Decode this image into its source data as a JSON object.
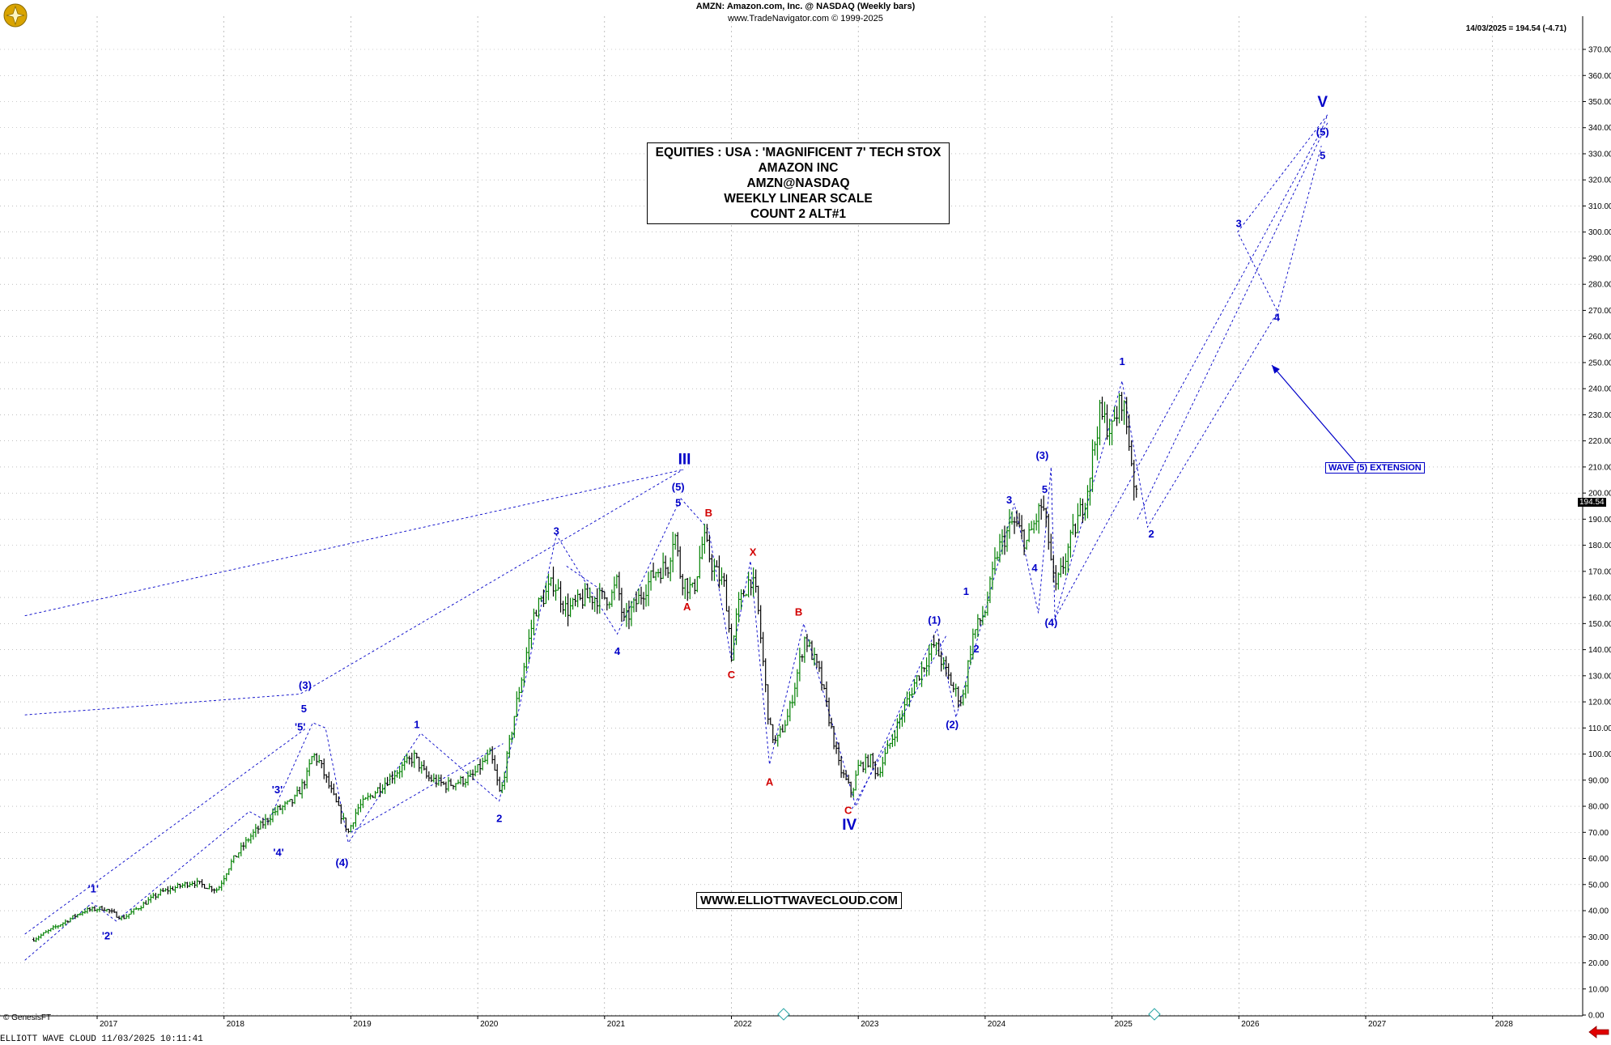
{
  "header": {
    "symbol_line": "AMZN:  Amazon.com, Inc. @ NASDAQ  (Weekly bars)",
    "source_line": "www.TradeNavigator.com © 1999-2025",
    "last_info": "14/03/2025 = 194.54 (-4.71)"
  },
  "info_box": {
    "lines": [
      "EQUITIES : USA : 'MAGNIFICENT 7' TECH STOX",
      "AMAZON INC",
      "AMZN@NASDAQ",
      "WEEKLY LINEAR SCALE",
      "COUNT 2 ALT#1"
    ]
  },
  "website": "WWW.ELLIOTTWAVECLOUD.COM",
  "extension_label": "WAVE (5) EXTENSION",
  "copyright": "© GenesisFT",
  "footer": "ELLIOTT WAVE CLOUD   11/03/2025 10:11:41",
  "last_price_tag": "194.54",
  "icons": {
    "logo": "genesis-logo-icon",
    "nav": "red-arrow-icon",
    "marker": "diamond-marker-icon"
  },
  "colors": {
    "wave_blue": "#0000c8",
    "wave_red": "#d20000",
    "bar_up": "#008000",
    "bar_down": "#000000",
    "grid": "#9a9a9a"
  },
  "chart_data": {
    "type": "ohlc",
    "title": "AMZN:  Amazon.com, Inc. @ NASDAQ  (Weekly bars)",
    "y_axis": {
      "min": 0,
      "max": 370,
      "step": 10,
      "side": "right"
    },
    "x_axis_years": [
      "2017",
      "2018",
      "2019",
      "2020",
      "2021",
      "2022",
      "2023",
      "2024",
      "2025",
      "2026",
      "2027",
      "2028"
    ],
    "grid": true,
    "price_path": [
      [
        2016.5,
        29
      ],
      [
        2016.9,
        40
      ],
      [
        2017.05,
        41
      ],
      [
        2017.2,
        37
      ],
      [
        2017.5,
        47
      ],
      [
        2017.75,
        51
      ],
      [
        2017.95,
        48
      ],
      [
        2018.05,
        58
      ],
      [
        2018.2,
        68
      ],
      [
        2018.4,
        78
      ],
      [
        2018.55,
        82
      ],
      [
        2018.65,
        91
      ],
      [
        2018.7,
        100
      ],
      [
        2018.75,
        97
      ],
      [
        2018.85,
        85
      ],
      [
        2018.98,
        70
      ],
      [
        2019.05,
        79
      ],
      [
        2019.2,
        86
      ],
      [
        2019.33,
        92
      ],
      [
        2019.5,
        99
      ],
      [
        2019.6,
        91
      ],
      [
        2019.75,
        88
      ],
      [
        2019.95,
        91
      ],
      [
        2020.1,
        100
      ],
      [
        2020.18,
        84
      ],
      [
        2020.3,
        118
      ],
      [
        2020.45,
        155
      ],
      [
        2020.6,
        166
      ],
      [
        2020.7,
        155
      ],
      [
        2020.85,
        160
      ],
      [
        2021.05,
        160
      ],
      [
        2021.1,
        166
      ],
      [
        2021.15,
        150
      ],
      [
        2021.4,
        170
      ],
      [
        2021.5,
        172
      ],
      [
        2021.55,
        186
      ],
      [
        2021.6,
        168
      ],
      [
        2021.7,
        162
      ],
      [
        2021.78,
        183
      ],
      [
        2021.85,
        172
      ],
      [
        2021.95,
        164
      ],
      [
        2022.0,
        138
      ],
      [
        2022.05,
        156
      ],
      [
        2022.15,
        168
      ],
      [
        2022.2,
        160
      ],
      [
        2022.3,
        110
      ],
      [
        2022.35,
        104
      ],
      [
        2022.45,
        115
      ],
      [
        2022.58,
        145
      ],
      [
        2022.7,
        130
      ],
      [
        2022.85,
        95
      ],
      [
        2022.95,
        85
      ],
      [
        2023.0,
        95
      ],
      [
        2023.1,
        98
      ],
      [
        2023.15,
        92
      ],
      [
        2023.3,
        110
      ],
      [
        2023.45,
        128
      ],
      [
        2023.6,
        142
      ],
      [
        2023.75,
        125
      ],
      [
        2023.82,
        120
      ],
      [
        2023.9,
        145
      ],
      [
        2024.0,
        155
      ],
      [
        2024.1,
        178
      ],
      [
        2024.22,
        189
      ],
      [
        2024.33,
        181
      ],
      [
        2024.45,
        196
      ],
      [
        2024.5,
        182
      ],
      [
        2024.55,
        162
      ],
      [
        2024.65,
        178
      ],
      [
        2024.8,
        200
      ],
      [
        2024.9,
        230
      ],
      [
        2025.0,
        224
      ],
      [
        2025.08,
        237
      ],
      [
        2025.14,
        218
      ],
      [
        2025.2,
        194.54
      ]
    ],
    "wave_lines": [
      [
        [
          2016.43,
          21
        ],
        [
          2016.96,
          43
        ],
        [
          2017.15,
          36
        ],
        [
          2018.2,
          78
        ],
        [
          2018.35,
          74
        ],
        [
          2018.7,
          112
        ],
        [
          2018.8,
          110
        ],
        [
          2018.98,
          66
        ],
        [
          2019.55,
          108
        ],
        [
          2020.17,
          82
        ],
        [
          2020.62,
          184
        ],
        [
          2021.1,
          146
        ],
        [
          2021.6,
          198
        ],
        [
          2021.82,
          186
        ],
        [
          2022.0,
          136
        ],
        [
          2022.15,
          174
        ],
        [
          2022.3,
          96
        ],
        [
          2022.57,
          150
        ],
        [
          2022.98,
          80
        ],
        [
          2023.62,
          148
        ],
        [
          2023.77,
          114
        ],
        [
          2024.23,
          196
        ],
        [
          2024.42,
          154
        ],
        [
          2024.52,
          210
        ],
        [
          2024.55,
          152
        ],
        [
          2025.08,
          243
        ],
        [
          2025.28,
          187
        ],
        [
          2026.3,
          269
        ],
        [
          2026.65,
          333
        ]
      ],
      [
        [
          2016.43,
          115
        ],
        [
          2018.6,
          123
        ],
        [
          2021.62,
          209
        ]
      ],
      [
        [
          2016.43,
          153
        ],
        [
          2021.62,
          209
        ]
      ],
      [
        [
          2016.43,
          31
        ],
        [
          2018.65,
          110
        ]
      ],
      [
        [
          2019.0,
          70
        ],
        [
          2020.2,
          104
        ]
      ],
      [
        [
          2020.7,
          172
        ],
        [
          2021.0,
          162
        ]
      ],
      [
        [
          2022.95,
          79
        ],
        [
          2023.7,
          146
        ]
      ],
      [
        [
          2024.55,
          152
        ],
        [
          2026.65,
          339
        ],
        [
          2026.7,
          345
        ],
        [
          2025.99,
          300
        ],
        [
          2026.3,
          270
        ]
      ],
      [
        [
          2025.2,
          190
        ],
        [
          2026.7,
          342
        ]
      ]
    ],
    "wave_labels": [
      {
        "text": "'1'",
        "x": 2016.97,
        "y": 47,
        "color": "blue"
      },
      {
        "text": "'2'",
        "x": 2017.08,
        "y": 29,
        "color": "blue"
      },
      {
        "text": "'3'",
        "x": 2018.42,
        "y": 85,
        "color": "blue"
      },
      {
        "text": "'4'",
        "x": 2018.43,
        "y": 61,
        "color": "blue"
      },
      {
        "text": "'5'",
        "x": 2018.6,
        "y": 109,
        "color": "blue"
      },
      {
        "text": "5",
        "x": 2018.63,
        "y": 116,
        "color": "blue"
      },
      {
        "text": "(3)",
        "x": 2018.64,
        "y": 125,
        "color": "blue"
      },
      {
        "text": "(4)",
        "x": 2018.93,
        "y": 57,
        "color": "blue"
      },
      {
        "text": "1",
        "x": 2019.52,
        "y": 110,
        "color": "blue"
      },
      {
        "text": "2",
        "x": 2020.17,
        "y": 74,
        "color": "blue"
      },
      {
        "text": "3",
        "x": 2020.62,
        "y": 184,
        "color": "blue"
      },
      {
        "text": "4",
        "x": 2021.1,
        "y": 138,
        "color": "blue"
      },
      {
        "text": "5",
        "x": 2021.58,
        "y": 195,
        "color": "blue"
      },
      {
        "text": "(5)",
        "x": 2021.58,
        "y": 201,
        "color": "blue"
      },
      {
        "text": "III",
        "x": 2021.63,
        "y": 211,
        "color": "blue",
        "big": true
      },
      {
        "text": "A",
        "x": 2021.65,
        "y": 155,
        "color": "red"
      },
      {
        "text": "B",
        "x": 2021.82,
        "y": 191,
        "color": "red"
      },
      {
        "text": "C",
        "x": 2022.0,
        "y": 129,
        "color": "red"
      },
      {
        "text": "X",
        "x": 2022.17,
        "y": 176,
        "color": "red"
      },
      {
        "text": "A",
        "x": 2022.3,
        "y": 88,
        "color": "red"
      },
      {
        "text": "B",
        "x": 2022.53,
        "y": 153,
        "color": "red"
      },
      {
        "text": "C",
        "x": 2022.92,
        "y": 77,
        "color": "red"
      },
      {
        "text": "IV",
        "x": 2022.93,
        "y": 71,
        "color": "blue",
        "big": true
      },
      {
        "text": "(1)",
        "x": 2023.6,
        "y": 150,
        "color": "blue"
      },
      {
        "text": "1",
        "x": 2023.85,
        "y": 161,
        "color": "blue"
      },
      {
        "text": "2",
        "x": 2023.93,
        "y": 139,
        "color": "blue"
      },
      {
        "text": "(2)",
        "x": 2023.74,
        "y": 110,
        "color": "blue"
      },
      {
        "text": "3",
        "x": 2024.19,
        "y": 196,
        "color": "blue"
      },
      {
        "text": "4",
        "x": 2024.39,
        "y": 170,
        "color": "blue"
      },
      {
        "text": "5",
        "x": 2024.47,
        "y": 200,
        "color": "blue"
      },
      {
        "text": "(3)",
        "x": 2024.45,
        "y": 213,
        "color": "blue"
      },
      {
        "text": "(4)",
        "x": 2024.52,
        "y": 149,
        "color": "blue"
      },
      {
        "text": "1",
        "x": 2025.08,
        "y": 249,
        "color": "blue"
      },
      {
        "text": "2",
        "x": 2025.31,
        "y": 183,
        "color": "blue"
      },
      {
        "text": "3",
        "x": 2026.0,
        "y": 302,
        "color": "blue"
      },
      {
        "text": "4",
        "x": 2026.3,
        "y": 266,
        "color": "blue"
      },
      {
        "text": "5",
        "x": 2026.66,
        "y": 328,
        "color": "blue"
      },
      {
        "text": "(5)",
        "x": 2026.66,
        "y": 337,
        "color": "blue"
      },
      {
        "text": "V",
        "x": 2026.66,
        "y": 348,
        "color": "blue",
        "big": true
      }
    ],
    "arrow": {
      "from": [
        2026.95,
        210
      ],
      "to": [
        2026.26,
        249
      ],
      "color": "blue"
    }
  }
}
